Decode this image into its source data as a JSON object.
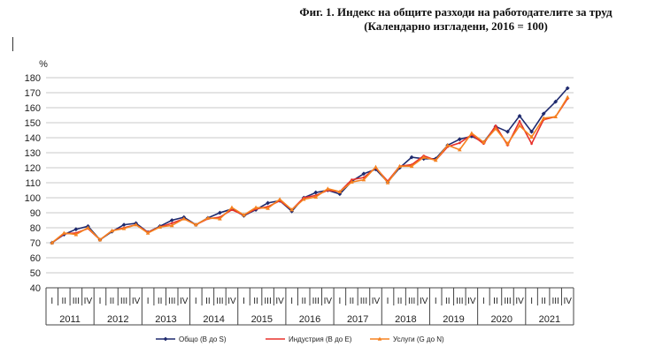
{
  "figure": {
    "title_line1": "Фиг. 1. Индекс на общите разходи на работодателите за труд",
    "title_line2": "(Календарно изгладени, 2016 = 100)"
  },
  "chart_data": {
    "type": "line",
    "ylabel": "%",
    "ylim": [
      40,
      180
    ],
    "yticks": [
      40,
      50,
      60,
      70,
      80,
      90,
      100,
      110,
      120,
      130,
      140,
      150,
      160,
      170,
      180
    ],
    "grid": true,
    "legend_position": "bottom",
    "quarter_labels": [
      "I",
      "II",
      "III",
      "IV"
    ],
    "years": [
      "2011",
      "2012",
      "2013",
      "2014",
      "2015",
      "2016",
      "2017",
      "2018",
      "2019",
      "2020",
      "2021"
    ],
    "series": [
      {
        "name": "Общо (B до S)",
        "color": "#1f2a6e",
        "marker": "diamond",
        "values": [
          70,
          75.5,
          79,
          81,
          72,
          77.5,
          82,
          83,
          77,
          81,
          85,
          87,
          82,
          86.5,
          90,
          92.5,
          88,
          92,
          96.5,
          98,
          91,
          100,
          103.5,
          105,
          102.5,
          111,
          116,
          119,
          110.5,
          120,
          127,
          126,
          126,
          135,
          139,
          141,
          137,
          147.5,
          144,
          154.5,
          144,
          156,
          164,
          173
        ]
      },
      {
        "name": "Индустрия (B до E)",
        "color": "#e8312b",
        "marker": "none",
        "values": [
          70,
          76,
          76.5,
          79.5,
          72,
          78,
          80,
          82,
          77,
          80.5,
          83,
          86,
          82,
          86,
          87,
          92,
          88.5,
          92.5,
          94,
          98,
          92,
          100,
          101.5,
          105,
          104,
          112,
          113.5,
          120,
          111,
          121,
          122,
          128,
          125,
          134,
          136.5,
          142,
          136,
          148,
          135,
          151,
          136,
          152,
          154,
          166
        ]
      },
      {
        "name": "Услуги (G до N)",
        "color": "#f58220",
        "marker": "triangle",
        "values": [
          70,
          76.5,
          75.5,
          80,
          72,
          78,
          79.5,
          82,
          76.5,
          80.5,
          81.5,
          86,
          82,
          86.5,
          86,
          93.5,
          88.5,
          93.5,
          93,
          99,
          92,
          99,
          100.5,
          106,
          104,
          110.5,
          112,
          120.5,
          110,
          121,
          121,
          127,
          125,
          135,
          132,
          143,
          137,
          146,
          136,
          148,
          140.5,
          153,
          154,
          167
        ]
      }
    ]
  }
}
